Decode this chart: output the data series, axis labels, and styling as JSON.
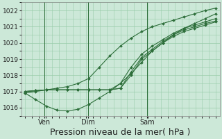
{
  "bg_color": "#cce8d8",
  "grid_color": "#99ccaa",
  "line_color": "#2d6e3a",
  "xlabel": "Pression niveau de la mer( hPa )",
  "xlabel_fontsize": 9,
  "ylim": [
    1015.5,
    1022.5
  ],
  "yticks": [
    1016,
    1017,
    1018,
    1019,
    1020,
    1021,
    1022
  ],
  "xtick_labels": [
    "Ven",
    "Dim",
    "Sam"
  ],
  "xtick_positions": [
    0.1,
    0.33,
    0.64
  ],
  "vline_positions": [
    0.1,
    0.33,
    0.64
  ],
  "series": [
    [
      1016.9,
      1017.0,
      1017.1,
      1017.2,
      1017.3,
      1017.5,
      1017.8,
      1018.5,
      1019.2,
      1019.8,
      1020.3,
      1020.7,
      1021.0,
      1021.2,
      1021.4,
      1021.6,
      1021.8,
      1022.0,
      1022.15
    ],
    [
      1017.0,
      1017.05,
      1017.1,
      1017.1,
      1017.1,
      1017.1,
      1017.1,
      1017.1,
      1017.1,
      1017.2,
      1018.0,
      1019.0,
      1019.5,
      1020.0,
      1020.4,
      1020.7,
      1020.9,
      1021.1,
      1021.3
    ],
    [
      1017.0,
      1017.05,
      1017.1,
      1017.1,
      1017.1,
      1017.1,
      1017.1,
      1017.1,
      1017.1,
      1017.2,
      1018.2,
      1019.1,
      1019.6,
      1020.1,
      1020.5,
      1020.8,
      1021.0,
      1021.2,
      1021.35
    ],
    [
      1017.0,
      1017.05,
      1017.1,
      1017.1,
      1017.1,
      1017.1,
      1017.1,
      1017.1,
      1017.1,
      1017.5,
      1018.5,
      1019.3,
      1019.8,
      1020.2,
      1020.6,
      1020.9,
      1021.1,
      1021.3,
      1021.5
    ],
    [
      1016.9,
      1016.5,
      1016.1,
      1015.85,
      1015.8,
      1015.9,
      1016.2,
      1016.6,
      1017.0,
      1017.5,
      1018.1,
      1018.8,
      1019.5,
      1020.0,
      1020.5,
      1020.9,
      1021.2,
      1021.5,
      1021.8
    ]
  ]
}
